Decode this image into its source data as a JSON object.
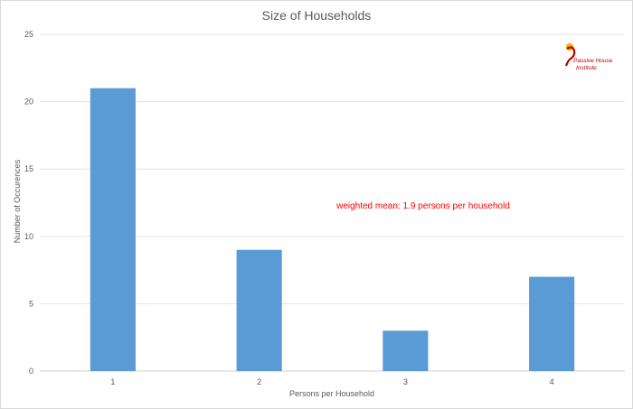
{
  "chart_data": {
    "type": "bar",
    "title": "Size of Households",
    "xlabel": "Persons per Household",
    "ylabel": "Number of Occurences",
    "categories": [
      "1",
      "2",
      "3",
      "4"
    ],
    "values": [
      21,
      9,
      3,
      7
    ],
    "ylim": [
      0,
      25
    ],
    "yticks": [
      "0",
      "5",
      "10",
      "15",
      "20",
      "25"
    ],
    "grid": true,
    "legend": "none",
    "bar_color": "#5b9bd5",
    "annotation": "weighted mean: 1.9 persons per household",
    "annotation_color": "#ff0000"
  },
  "logo": {
    "name": "passive-house-institute-logo",
    "line1": "Passive House",
    "line2": "Institute",
    "colors": [
      "#f2b705",
      "#c00000"
    ]
  }
}
